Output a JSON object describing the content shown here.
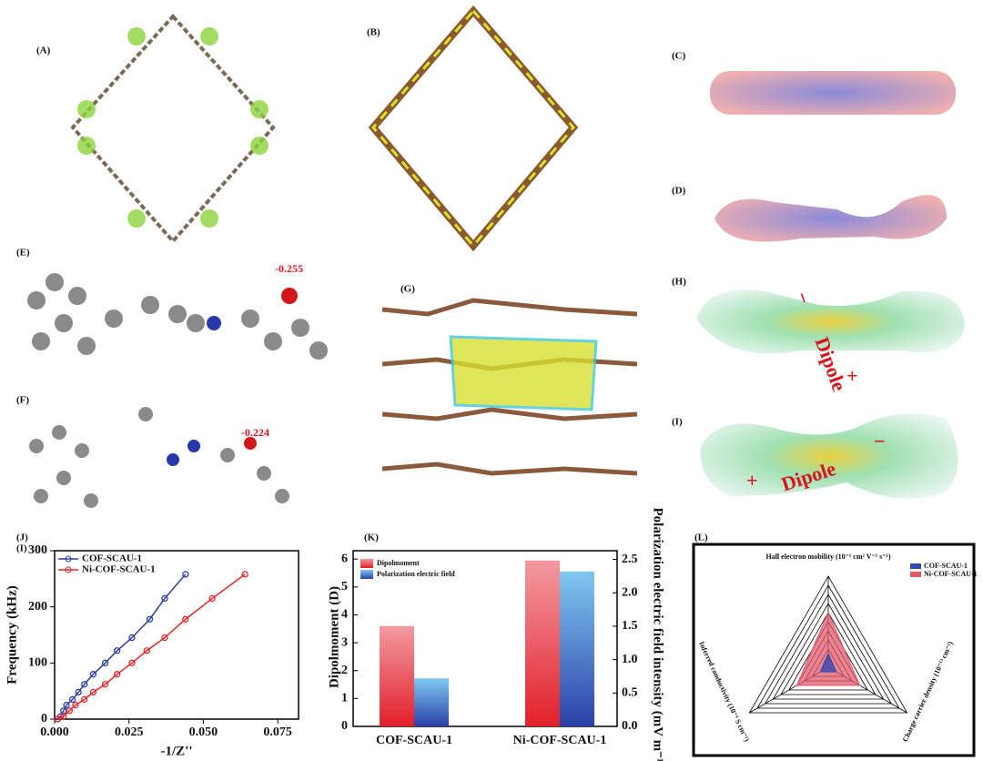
{
  "panels": {
    "A": "(A)",
    "B": "(B)",
    "C": "(C)",
    "D": "(D)",
    "E": "(E)",
    "F": "(F)",
    "G": "(G)",
    "H": "(H)",
    "I": "(I)"
  },
  "annotations": {
    "E_charge": "-0.255",
    "F_charge": "-0.224",
    "H_dipole": "Dipole",
    "H_minus": "−",
    "H_plus": "+",
    "I_dipole": "Dipole",
    "I_minus": "−",
    "I_plus": "+"
  },
  "chart_data": [
    {
      "type": "line",
      "panel": "(J)",
      "overlay_label": "(I)",
      "x_label": "-1/Z''",
      "y_label": "Frequency (kHz)",
      "xlim": [
        0,
        0.082
      ],
      "ylim": [
        0,
        300
      ],
      "xticks": [
        {
          "value": 0,
          "label": "0.000"
        },
        0.025,
        {
          "value": 0.05,
          "label": "0.050"
        },
        0.075
      ],
      "yticks": [
        0,
        100,
        200,
        300
      ],
      "legend": "top-left",
      "series": [
        {
          "name": "COF-SCAU-1",
          "color": "#2a3fa8",
          "x": [
            0.001,
            0.002,
            0.003,
            0.004,
            0.006,
            0.008,
            0.01,
            0.013,
            0.017,
            0.021,
            0.026,
            0.032,
            0.037,
            0.044
          ],
          "values": [
            0,
            5,
            15,
            25,
            35,
            48,
            62,
            80,
            100,
            122,
            145,
            178,
            215,
            258
          ]
        },
        {
          "name": "Ni-COF-SCAU-1",
          "color": "#e02828",
          "x": [
            0.001,
            0.003,
            0.005,
            0.007,
            0.01,
            0.013,
            0.017,
            0.021,
            0.026,
            0.031,
            0.037,
            0.044,
            0.053,
            0.064
          ],
          "values": [
            0,
            5,
            15,
            25,
            35,
            48,
            62,
            80,
            100,
            122,
            145,
            178,
            215,
            258
          ]
        }
      ]
    },
    {
      "type": "bar",
      "panel": "(K)",
      "y_label": "Dipolmoment (D)",
      "y2_label": "Polarization electric field intensity (mV m⁻¹)",
      "categories": [
        "COF-SCAU-1",
        "Ni-COF-SCAU-1"
      ],
      "ylim": [
        0,
        6.3
      ],
      "yticks": [
        0,
        1,
        2,
        3,
        4,
        5,
        6
      ],
      "y2lim": [
        0,
        2.63
      ],
      "y2ticks": [
        {
          "value": 0,
          "label": "0.0"
        },
        0.5,
        {
          "value": 1,
          "label": "1.0"
        },
        1.5,
        {
          "value": 2,
          "label": "2.0"
        },
        2.5
      ],
      "legend": "top-left",
      "series": [
        {
          "name": "Dipolmoment",
          "color": "#e8323c",
          "values": [
            3.6,
            5.95
          ]
        },
        {
          "name": "Polarization electric field",
          "color": "#3a55b0",
          "values": [
            0.72,
            2.32
          ],
          "axis": "y2"
        }
      ]
    },
    {
      "type": "radar",
      "panel": "(L)",
      "axes": [
        "Hall electron mobility (10⁻¹ cm² V⁻¹ s⁻¹)",
        "Charge carrier density (10⁻¹³ cm⁻²)",
        "Inferred conductivity (10⁻⁴ S cm⁻¹)"
      ],
      "rlim": [
        0,
        10
      ],
      "legend": "top-right",
      "series": [
        {
          "name": "COF-SCAU-1",
          "color": "#3048b8",
          "values": [
            1.5,
            1,
            1
          ]
        },
        {
          "name": "Ni-COF-SCAU-1",
          "color": "#e05a6a",
          "values": [
            6,
            4,
            4
          ]
        }
      ]
    }
  ]
}
